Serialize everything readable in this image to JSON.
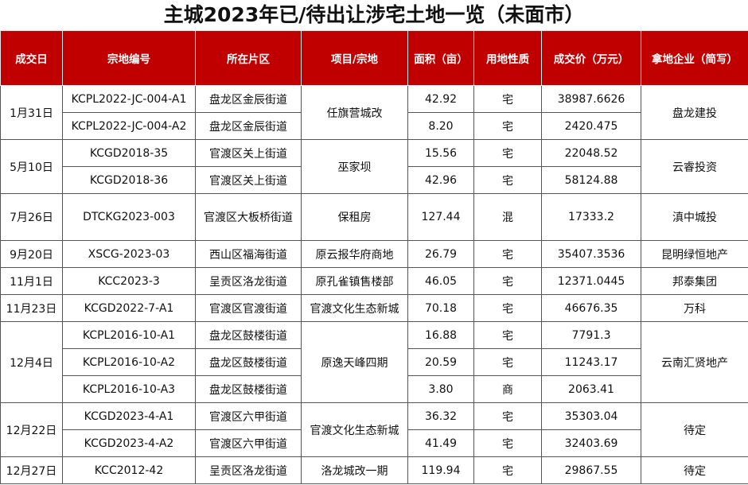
{
  "title": "主城2023年已/待出让涉宅土地一览（未面市）",
  "headers": [
    "成交日",
    "宗地编号",
    "所在片区",
    "项目/宗地",
    "面积（亩）",
    "用地性质",
    "成交价（万元）",
    "拿地企业（简写）"
  ],
  "colors": {
    "header_bg": "#c00000",
    "header_text": "#ffffff"
  },
  "groups": [
    {
      "date": "1月31日",
      "project": "任旗营城改",
      "company": "盘龙建投",
      "rows": [
        {
          "id": "KCPL2022-JC-004-A1",
          "district": "盘龙区金辰街道",
          "area": "42.92",
          "use": "宅",
          "price": "38987.6626"
        },
        {
          "id": "KCPL2022-JC-004-A2",
          "district": "盘龙区金辰街道",
          "area": "8.20",
          "use": "宅",
          "price": "2420.475"
        }
      ]
    },
    {
      "date": "5月10日",
      "project": "巫家坝",
      "company": "云睿投资",
      "rows": [
        {
          "id": "KCGD2018-35",
          "district": "官渡区关上街道",
          "area": "15.56",
          "use": "宅",
          "price": "22048.52"
        },
        {
          "id": "KCGD2018-36",
          "district": "官渡区关上街道",
          "area": "42.96",
          "use": "宅",
          "price": "58124.88"
        }
      ]
    },
    {
      "date": "7月26日",
      "project": "保租房",
      "company": "滇中城投",
      "rows": [
        {
          "id": "DTCKG2023-003",
          "district": "官渡区大板桥街道",
          "area": "127.44",
          "use": "混",
          "price": "17333.2"
        }
      ]
    },
    {
      "date": "9月20日",
      "project": "原云报华府商地",
      "company": "昆明绿恒地产",
      "rows": [
        {
          "id": "XSCG-2023-03",
          "district": "西山区福海街道",
          "area": "26.79",
          "use": "宅",
          "price": "35407.3536"
        }
      ]
    },
    {
      "date": "11月1日",
      "project": "原孔雀镇售楼部",
      "company": "邦泰集团",
      "rows": [
        {
          "id": "KCC2023-3",
          "district": "呈贡区洛龙街道",
          "area": "46.05",
          "use": "宅",
          "price": "12371.0445"
        }
      ]
    },
    {
      "date": "11月23日",
      "project": "官渡文化生态新城",
      "company": "万科",
      "rows": [
        {
          "id": "KCGD2022-7-A1",
          "district": "官渡区官渡街道",
          "area": "70.18",
          "use": "宅",
          "price": "46676.35"
        }
      ]
    },
    {
      "date": "12月4日",
      "project": "原逸天峰四期",
      "company": "云南汇贤地产",
      "rows": [
        {
          "id": "KCPL2016-10-A1",
          "district": "盘龙区鼓楼街道",
          "area": "16.88",
          "use": "宅",
          "price": "7791.3"
        },
        {
          "id": "KCPL2016-10-A2",
          "district": "盘龙区鼓楼街道",
          "area": "20.59",
          "use": "宅",
          "price": "11243.17"
        },
        {
          "id": "KCPL2016-10-A3",
          "district": "盘龙区鼓楼街道",
          "area": "3.80",
          "use": "商",
          "price": "2063.41"
        }
      ]
    },
    {
      "date": "12月22日",
      "project": "官渡文化生态新城",
      "company": "待定",
      "rows": [
        {
          "id": "KCGD2023-4-A1",
          "district": "官渡区六甲街道",
          "area": "36.32",
          "use": "宅",
          "price": "35303.04"
        },
        {
          "id": "KCGD2023-4-A2",
          "district": "官渡区六甲街道",
          "area": "41.49",
          "use": "宅",
          "price": "32403.69"
        }
      ]
    },
    {
      "date": "12月27日",
      "project": "洛龙城改一期",
      "company": "待定",
      "rows": [
        {
          "id": "KCC2012-42",
          "district": "呈贡区洛龙街道",
          "area": "119.94",
          "use": "宅",
          "price": "29867.55"
        }
      ]
    }
  ]
}
